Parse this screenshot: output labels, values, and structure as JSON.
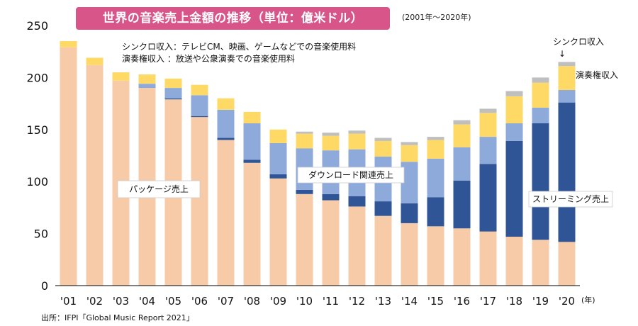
{
  "chart_data": {
    "type": "bar",
    "stacked": true,
    "title": "世界の音楽売上金額の推移（単位：億米ドル）",
    "subtitle": "(2001年～2020年)",
    "categories": [
      "'01",
      "'02",
      "'03",
      "'04",
      "'05",
      "'06",
      "'07",
      "'08",
      "'09",
      "'10",
      "'11",
      "'12",
      "'13",
      "'14",
      "'15",
      "'16",
      "'17",
      "'18",
      "'19",
      "'20"
    ],
    "xlabel": "(年)",
    "ylabel": "",
    "ylim": [
      0,
      250
    ],
    "yticks": [
      0,
      50,
      100,
      150,
      200,
      250
    ],
    "series": [
      {
        "name": "パッケージ売上",
        "color": "#f8cba8",
        "values": [
          229,
          212,
          197,
          190,
          179,
          162,
          140,
          118,
          103,
          88,
          82,
          76,
          67,
          60,
          57,
          55,
          52,
          47,
          44,
          42
        ]
      },
      {
        "name": "ストリーミング売上",
        "color": "#2f5597",
        "values": [
          0,
          0,
          0,
          0,
          1,
          1,
          2,
          3,
          4,
          4,
          6,
          10,
          14,
          19,
          28,
          46,
          65,
          92,
          112,
          134
        ]
      },
      {
        "name": "ダウンロード関連売上",
        "color": "#8eaadb",
        "values": [
          0,
          0,
          0,
          4,
          10,
          20,
          27,
          35,
          30,
          40,
          42,
          45,
          43,
          40,
          37,
          32,
          26,
          17,
          15,
          12
        ]
      },
      {
        "name": "演奏権収入",
        "color": "#ffd966",
        "values": [
          6,
          7,
          8,
          9,
          9,
          10,
          11,
          11,
          13,
          14,
          14,
          15,
          15,
          16,
          18,
          22,
          23,
          26,
          24,
          23
        ]
      },
      {
        "name": "シンクロ収入",
        "color": "#bfbfbf",
        "values": [
          0,
          0,
          0,
          0,
          0,
          0,
          0,
          0,
          0,
          2,
          3,
          3,
          3,
          3,
          3,
          4,
          4,
          5,
          5,
          4
        ]
      }
    ],
    "annotations": {
      "package": "パッケージ売上",
      "download": "ダウンロード関連売上",
      "streaming": "ストリーミング売上",
      "performance": "演奏権収入",
      "sync": "シンクロ収入",
      "arrow": "↓"
    }
  },
  "definitions": [
    "シンクロ収入：テレビCM、映画、ゲームなどでの音楽使用料",
    "演奏権収入 ：放送や公衆演奏での音楽使用料"
  ],
  "source": "出所：IFPI「Global Music Report 2021」"
}
